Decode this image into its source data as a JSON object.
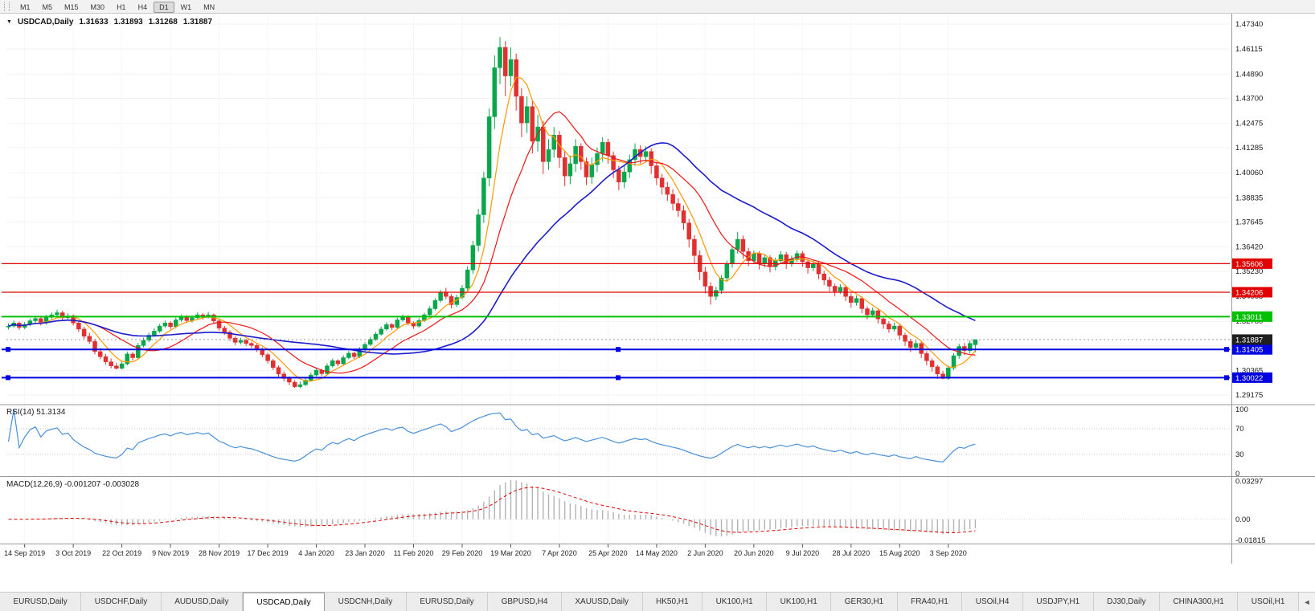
{
  "toolbar": {
    "timeframes": [
      "M1",
      "M5",
      "M15",
      "M30",
      "H1",
      "H4",
      "D1",
      "W1",
      "MN"
    ],
    "active_timeframe": "D1"
  },
  "title": {
    "collapse_icon": "▼",
    "symbol_period": "USDCAD,Daily",
    "open": "1.31633",
    "high": "1.31893",
    "low": "1.31268",
    "close": "1.31887"
  },
  "price_axis": {
    "labels": [
      "1.47340",
      "1.46115",
      "1.44890",
      "1.43700",
      "1.42475",
      "1.41285",
      "1.40060",
      "1.38835",
      "1.37645",
      "1.36420",
      "1.35230",
      "1.34005",
      "1.32780",
      "1.31590",
      "1.30365",
      "1.29175"
    ]
  },
  "bid": {
    "label": "1.31887",
    "value": 1.31887,
    "tag_color": "#1f1f1f"
  },
  "hlines": [
    {
      "label": "1.35606",
      "value": 1.35606,
      "color": "#e00000",
      "width": 1.2,
      "selected": false
    },
    {
      "label": "1.34206",
      "value": 1.34206,
      "color": "#e00000",
      "width": 1.2,
      "selected": false
    },
    {
      "label": "1.33011",
      "value": 1.33011,
      "color": "#00c000",
      "width": 2,
      "selected": false
    },
    {
      "label": "1.31405",
      "value": 1.31405,
      "color": "#0000e0",
      "width": 2,
      "selected": true
    },
    {
      "label": "1.30022",
      "value": 1.30022,
      "color": "#0000e0",
      "width": 2,
      "selected": true
    }
  ],
  "rsi": {
    "name": "RSI(14)",
    "value": "51.3134",
    "line_color": "#4a90d9",
    "levels": [
      {
        "label": "100",
        "value": 100,
        "dashed": false
      },
      {
        "label": "70",
        "value": 70,
        "dashed": true
      },
      {
        "label": "30",
        "value": 30,
        "dashed": true
      },
      {
        "label": "0",
        "value": 0,
        "dashed": false
      }
    ]
  },
  "macd": {
    "name": "MACD(12,26,9)",
    "values": "-0.001207 -0.003028",
    "hist_color": "#b3b3b3",
    "signal_color": "#e00000",
    "axis": [
      {
        "label": "0.03297",
        "value": 0.03297
      },
      {
        "label": "0.00",
        "value": 0
      },
      {
        "label": "-0.01815",
        "value": -0.01815
      }
    ]
  },
  "date_axis": {
    "labels": [
      "14 Sep 2019",
      "3 Oct 2019",
      "22 Oct 2019",
      "9 Nov 2019",
      "28 Nov 2019",
      "17 Dec 2019",
      "4 Jan 2020",
      "23 Jan 2020",
      "11 Feb 2020",
      "29 Feb 2020",
      "19 Mar 2020",
      "7 Apr 2020",
      "25 Apr 2020",
      "14 May 2020",
      "2 Jun 2020",
      "20 Jun 2020",
      "9 Jul 2020",
      "28 Jul 2020",
      "15 Aug 2020",
      "3 Sep 2020"
    ]
  },
  "tabs": {
    "items": [
      "EURUSD,Daily",
      "USDCHF,Daily",
      "AUDUSD,Daily",
      "USDCAD,Daily",
      "USDCNH,Daily",
      "EURUSD,Daily",
      "GBPUSD,H4",
      "XAUUSD,Daily",
      "HK50,H1",
      "UK100,H1",
      "UK100,H1",
      "GER30,H1",
      "FRA40,H1",
      "USOil,H4",
      "USDJPY,H1",
      "DJ30,Daily",
      "CHINA300,H1",
      "USOil,H1"
    ],
    "active_index": 3,
    "scroll_icon": "◄"
  },
  "chart_data": {
    "type": "candlestick",
    "symbol": "USDCAD",
    "period": "Daily",
    "up_color": "#0aa64b",
    "down_color": "#e03030",
    "y_range": [
      1.28742,
      1.4785
    ],
    "ma_lines": [
      {
        "period": 6,
        "color": "#ff9900"
      },
      {
        "period": 14,
        "color": "#f01414"
      },
      {
        "period": 34,
        "color": "#1c1ccd"
      }
    ],
    "ohlc": [
      [
        1.325,
        1.3268,
        1.3238,
        1.3255
      ],
      [
        1.3255,
        1.3282,
        1.3248,
        1.327
      ],
      [
        1.327,
        1.3276,
        1.3236,
        1.3248
      ],
      [
        1.3248,
        1.3274,
        1.324,
        1.3262
      ],
      [
        1.3262,
        1.3292,
        1.3254,
        1.3281
      ],
      [
        1.3281,
        1.3304,
        1.327,
        1.3292
      ],
      [
        1.3292,
        1.33,
        1.3258,
        1.327
      ],
      [
        1.327,
        1.331,
        1.3262,
        1.3298
      ],
      [
        1.3298,
        1.3322,
        1.3288,
        1.331
      ],
      [
        1.331,
        1.3335,
        1.33,
        1.332
      ],
      [
        1.332,
        1.333,
        1.3282,
        1.3295
      ],
      [
        1.3295,
        1.3318,
        1.3286,
        1.3305
      ],
      [
        1.3305,
        1.3312,
        1.3258,
        1.327
      ],
      [
        1.327,
        1.328,
        1.3226,
        1.324
      ],
      [
        1.324,
        1.3252,
        1.3192,
        1.3205
      ],
      [
        1.3205,
        1.3222,
        1.3168,
        1.318
      ],
      [
        1.318,
        1.3192,
        1.3116,
        1.313
      ],
      [
        1.313,
        1.3148,
        1.3092,
        1.3105
      ],
      [
        1.3105,
        1.3118,
        1.3066,
        1.308
      ],
      [
        1.308,
        1.3096,
        1.3048,
        1.306
      ],
      [
        1.306,
        1.3075,
        1.3042,
        1.3048
      ],
      [
        1.3048,
        1.3086,
        1.3042,
        1.307
      ],
      [
        1.307,
        1.313,
        1.3062,
        1.3118
      ],
      [
        1.3118,
        1.3128,
        1.3086,
        1.31
      ],
      [
        1.31,
        1.3172,
        1.3094,
        1.316
      ],
      [
        1.316,
        1.3198,
        1.315,
        1.3185
      ],
      [
        1.3185,
        1.3222,
        1.3176,
        1.321
      ],
      [
        1.321,
        1.3244,
        1.3202,
        1.323
      ],
      [
        1.323,
        1.3266,
        1.3222,
        1.3255
      ],
      [
        1.3255,
        1.3282,
        1.3246,
        1.327
      ],
      [
        1.327,
        1.3278,
        1.324,
        1.3252
      ],
      [
        1.3252,
        1.3296,
        1.3244,
        1.3285
      ],
      [
        1.3285,
        1.3312,
        1.3276,
        1.33
      ],
      [
        1.33,
        1.3308,
        1.327,
        1.3282
      ],
      [
        1.3282,
        1.3306,
        1.3272,
        1.3295
      ],
      [
        1.3295,
        1.3322,
        1.3286,
        1.331
      ],
      [
        1.331,
        1.3318,
        1.3286,
        1.3298
      ],
      [
        1.3298,
        1.3324,
        1.3292,
        1.331
      ],
      [
        1.331,
        1.3316,
        1.3268,
        1.328
      ],
      [
        1.328,
        1.3288,
        1.3232,
        1.3245
      ],
      [
        1.3245,
        1.3256,
        1.3212,
        1.3225
      ],
      [
        1.3225,
        1.3234,
        1.3182,
        1.3195
      ],
      [
        1.3195,
        1.3206,
        1.3162,
        1.3175
      ],
      [
        1.3175,
        1.3198,
        1.3166,
        1.3185
      ],
      [
        1.3185,
        1.3192,
        1.3158,
        1.317
      ],
      [
        1.317,
        1.3178,
        1.3148,
        1.316
      ],
      [
        1.316,
        1.3168,
        1.3128,
        1.314
      ],
      [
        1.314,
        1.315,
        1.3102,
        1.3115
      ],
      [
        1.3115,
        1.3124,
        1.3072,
        1.3085
      ],
      [
        1.3085,
        1.3094,
        1.304,
        1.3052
      ],
      [
        1.3052,
        1.3062,
        1.3006,
        1.302
      ],
      [
        1.302,
        1.3032,
        1.2984,
        1.2998
      ],
      [
        1.2998,
        1.3008,
        1.2966,
        1.298
      ],
      [
        1.298,
        1.299,
        1.2952,
        1.2958
      ],
      [
        1.2958,
        1.2984,
        1.295,
        1.2968
      ],
      [
        1.2968,
        1.3002,
        1.296,
        1.299
      ],
      [
        1.299,
        1.3026,
        1.2982,
        1.3015
      ],
      [
        1.3015,
        1.305,
        1.3008,
        1.3038
      ],
      [
        1.3038,
        1.3046,
        1.301,
        1.3022
      ],
      [
        1.3022,
        1.3072,
        1.3014,
        1.306
      ],
      [
        1.306,
        1.3096,
        1.3052,
        1.3085
      ],
      [
        1.3085,
        1.3092,
        1.3058,
        1.307
      ],
      [
        1.307,
        1.3112,
        1.3062,
        1.31
      ],
      [
        1.31,
        1.3134,
        1.3092,
        1.3122
      ],
      [
        1.3122,
        1.313,
        1.3094,
        1.3105
      ],
      [
        1.3105,
        1.3152,
        1.3098,
        1.314
      ],
      [
        1.314,
        1.3176,
        1.3132,
        1.3165
      ],
      [
        1.3165,
        1.3202,
        1.3158,
        1.319
      ],
      [
        1.319,
        1.3226,
        1.3182,
        1.3215
      ],
      [
        1.3215,
        1.3252,
        1.3208,
        1.324
      ],
      [
        1.324,
        1.3274,
        1.3232,
        1.3262
      ],
      [
        1.3262,
        1.327,
        1.3236,
        1.3248
      ],
      [
        1.3248,
        1.3296,
        1.324,
        1.3285
      ],
      [
        1.3285,
        1.3312,
        1.3276,
        1.33
      ],
      [
        1.33,
        1.3308,
        1.3258,
        1.327
      ],
      [
        1.327,
        1.3278,
        1.3242,
        1.3255
      ],
      [
        1.3255,
        1.3294,
        1.3248,
        1.3282
      ],
      [
        1.3282,
        1.332,
        1.3274,
        1.331
      ],
      [
        1.331,
        1.3352,
        1.3302,
        1.334
      ],
      [
        1.334,
        1.3392,
        1.3332,
        1.338
      ],
      [
        1.338,
        1.3432,
        1.337,
        1.342
      ],
      [
        1.342,
        1.3442,
        1.3386,
        1.34
      ],
      [
        1.34,
        1.3412,
        1.3342,
        1.336
      ],
      [
        1.336,
        1.3408,
        1.3348,
        1.3395
      ],
      [
        1.3395,
        1.3456,
        1.3386,
        1.344
      ],
      [
        1.344,
        1.3548,
        1.3428,
        1.353
      ],
      [
        1.353,
        1.3672,
        1.351,
        1.365
      ],
      [
        1.365,
        1.3828,
        1.362,
        1.38
      ],
      [
        1.38,
        1.401,
        1.376,
        1.398
      ],
      [
        1.398,
        1.432,
        1.394,
        1.428
      ],
      [
        1.428,
        1.458,
        1.422,
        1.452
      ],
      [
        1.452,
        1.467,
        1.444,
        1.462
      ],
      [
        1.462,
        1.465,
        1.438,
        1.448
      ],
      [
        1.448,
        1.462,
        1.443,
        1.456
      ],
      [
        1.456,
        1.459,
        1.431,
        1.438
      ],
      [
        1.438,
        1.442,
        1.418,
        1.425
      ],
      [
        1.425,
        1.438,
        1.42,
        1.433
      ],
      [
        1.433,
        1.436,
        1.41,
        1.416
      ],
      [
        1.416,
        1.429,
        1.411,
        1.423
      ],
      [
        1.423,
        1.426,
        1.4,
        1.406
      ],
      [
        1.406,
        1.417,
        1.402,
        1.412
      ],
      [
        1.412,
        1.423,
        1.408,
        1.419
      ],
      [
        1.419,
        1.421,
        1.403,
        1.408
      ],
      [
        1.408,
        1.411,
        1.394,
        1.399
      ],
      [
        1.399,
        1.409,
        1.395,
        1.405
      ],
      [
        1.405,
        1.417,
        1.401,
        1.4135
      ],
      [
        1.4135,
        1.415,
        1.402,
        1.406
      ],
      [
        1.406,
        1.408,
        1.3945,
        1.3985
      ],
      [
        1.3985,
        1.408,
        1.395,
        1.4045
      ],
      [
        1.4045,
        1.413,
        1.401,
        1.41
      ],
      [
        1.41,
        1.418,
        1.406,
        1.4155
      ],
      [
        1.4155,
        1.4172,
        1.405,
        1.409
      ],
      [
        1.409,
        1.411,
        1.398,
        1.402
      ],
      [
        1.402,
        1.404,
        1.392,
        1.396
      ],
      [
        1.396,
        1.404,
        1.393,
        1.401
      ],
      [
        1.401,
        1.4095,
        1.398,
        1.407
      ],
      [
        1.407,
        1.415,
        1.404,
        1.412
      ],
      [
        1.412,
        1.414,
        1.405,
        1.4085
      ],
      [
        1.4085,
        1.4135,
        1.4055,
        1.411
      ],
      [
        1.411,
        1.4125,
        1.4,
        1.404
      ],
      [
        1.404,
        1.406,
        1.3945,
        1.398
      ],
      [
        1.398,
        1.4,
        1.39,
        1.3935
      ],
      [
        1.3935,
        1.396,
        1.3868,
        1.39
      ],
      [
        1.39,
        1.3925,
        1.3822,
        1.3855
      ],
      [
        1.3855,
        1.388,
        1.379,
        1.382
      ],
      [
        1.382,
        1.3845,
        1.3726,
        1.376
      ],
      [
        1.376,
        1.378,
        1.364,
        1.368
      ],
      [
        1.368,
        1.37,
        1.356,
        1.36
      ],
      [
        1.36,
        1.3625,
        1.348,
        1.352
      ],
      [
        1.352,
        1.3545,
        1.3415,
        1.345
      ],
      [
        1.345,
        1.347,
        1.336,
        1.34
      ],
      [
        1.34,
        1.3448,
        1.3382,
        1.343
      ],
      [
        1.343,
        1.3505,
        1.3412,
        1.349
      ],
      [
        1.349,
        1.3575,
        1.347,
        1.356
      ],
      [
        1.356,
        1.3648,
        1.354,
        1.363
      ],
      [
        1.363,
        1.3715,
        1.361,
        1.368
      ],
      [
        1.368,
        1.3698,
        1.3585,
        1.362
      ],
      [
        1.362,
        1.3638,
        1.3548,
        1.3575
      ],
      [
        1.3575,
        1.3625,
        1.356,
        1.361
      ],
      [
        1.361,
        1.3622,
        1.3532,
        1.356
      ],
      [
        1.356,
        1.3605,
        1.3542,
        1.359
      ],
      [
        1.359,
        1.3602,
        1.3518,
        1.3545
      ],
      [
        1.3545,
        1.359,
        1.3528,
        1.3575
      ],
      [
        1.3575,
        1.3622,
        1.3558,
        1.3605
      ],
      [
        1.3605,
        1.3618,
        1.3535,
        1.356
      ],
      [
        1.356,
        1.36,
        1.3545,
        1.3585
      ],
      [
        1.3585,
        1.3625,
        1.3568,
        1.361
      ],
      [
        1.361,
        1.3622,
        1.3545,
        1.357
      ],
      [
        1.357,
        1.3582,
        1.3512,
        1.354
      ],
      [
        1.354,
        1.3578,
        1.3525,
        1.356
      ],
      [
        1.356,
        1.3572,
        1.3485,
        1.351
      ],
      [
        1.351,
        1.3525,
        1.3455,
        1.348
      ],
      [
        1.348,
        1.3495,
        1.3425,
        1.345
      ],
      [
        1.345,
        1.3462,
        1.3402,
        1.3425
      ],
      [
        1.3425,
        1.346,
        1.3412,
        1.3445
      ],
      [
        1.3445,
        1.3455,
        1.3378,
        1.34
      ],
      [
        1.34,
        1.3415,
        1.3345,
        1.337
      ],
      [
        1.337,
        1.3405,
        1.3355,
        1.339
      ],
      [
        1.339,
        1.34,
        1.3318,
        1.334
      ],
      [
        1.334,
        1.3352,
        1.3288,
        1.331
      ],
      [
        1.331,
        1.3345,
        1.3298,
        1.333
      ],
      [
        1.333,
        1.334,
        1.3268,
        1.329
      ],
      [
        1.329,
        1.3302,
        1.3242,
        1.3265
      ],
      [
        1.3265,
        1.3278,
        1.3222,
        1.324
      ],
      [
        1.324,
        1.3272,
        1.3228,
        1.3255
      ],
      [
        1.3255,
        1.3265,
        1.3188,
        1.321
      ],
      [
        1.321,
        1.3222,
        1.3158,
        1.318
      ],
      [
        1.318,
        1.3192,
        1.3128,
        1.315
      ],
      [
        1.315,
        1.3185,
        1.3138,
        1.317
      ],
      [
        1.317,
        1.318,
        1.3098,
        1.312
      ],
      [
        1.312,
        1.3132,
        1.3062,
        1.3085
      ],
      [
        1.3085,
        1.3096,
        1.3032,
        1.3055
      ],
      [
        1.3055,
        1.3065,
        1.2996,
        1.302
      ],
      [
        1.302,
        1.3035,
        1.2994,
        1.2998
      ],
      [
        1.2998,
        1.3062,
        1.2992,
        1.305
      ],
      [
        1.305,
        1.3122,
        1.304,
        1.311
      ],
      [
        1.311,
        1.3168,
        1.3095,
        1.3155
      ],
      [
        1.3155,
        1.3172,
        1.3112,
        1.3135
      ],
      [
        1.3135,
        1.3185,
        1.312,
        1.317
      ],
      [
        1.31633,
        1.31893,
        1.31268,
        1.31887
      ]
    ]
  }
}
